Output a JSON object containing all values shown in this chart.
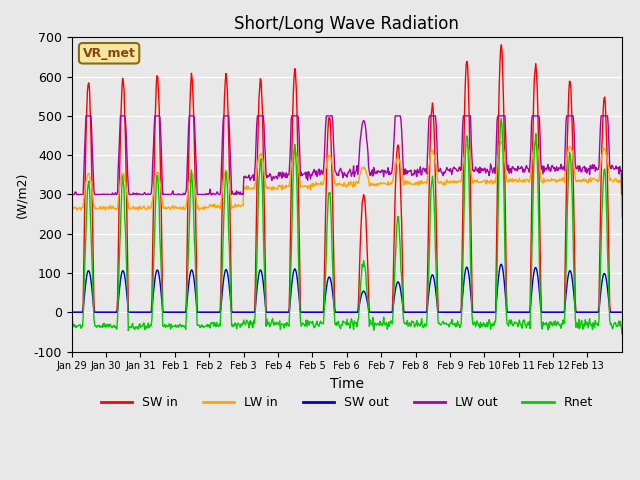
{
  "title": "Short/Long Wave Radiation",
  "xlabel": "Time",
  "ylabel": "(W/m2)",
  "ylim": [
    -100,
    700
  ],
  "yticks": [
    -100,
    0,
    100,
    200,
    300,
    400,
    500,
    600,
    700
  ],
  "background_color": "#e8e8e8",
  "axes_bg_color": "#e8e8e8",
  "grid_color": "white",
  "label_box": "VR_met",
  "series_colors": {
    "SW_in": "#ff0000",
    "LW_in": "#ffa500",
    "SW_out": "#0000cc",
    "LW_out": "#aa00aa",
    "Rnet": "#00cc00"
  },
  "legend_labels": [
    "SW in",
    "LW in",
    "SW out",
    "LW out",
    "Rnet"
  ],
  "xticklabels": [
    "Jan 29",
    "Jan 30",
    "Jan 31",
    "Feb 1",
    "Feb 2",
    "Feb 3",
    "Feb 4",
    "Feb 5",
    "Feb 6",
    "Feb 7",
    "Feb 8",
    "Feb 9",
    "Feb 10",
    "Feb 11",
    "Feb 12",
    "Feb 13"
  ],
  "n_days": 16,
  "pts_per_day": 48,
  "sw_peaks": [
    590,
    590,
    600,
    600,
    605,
    600,
    615,
    500,
    300,
    430,
    530,
    640,
    680,
    635,
    590,
    550
  ]
}
